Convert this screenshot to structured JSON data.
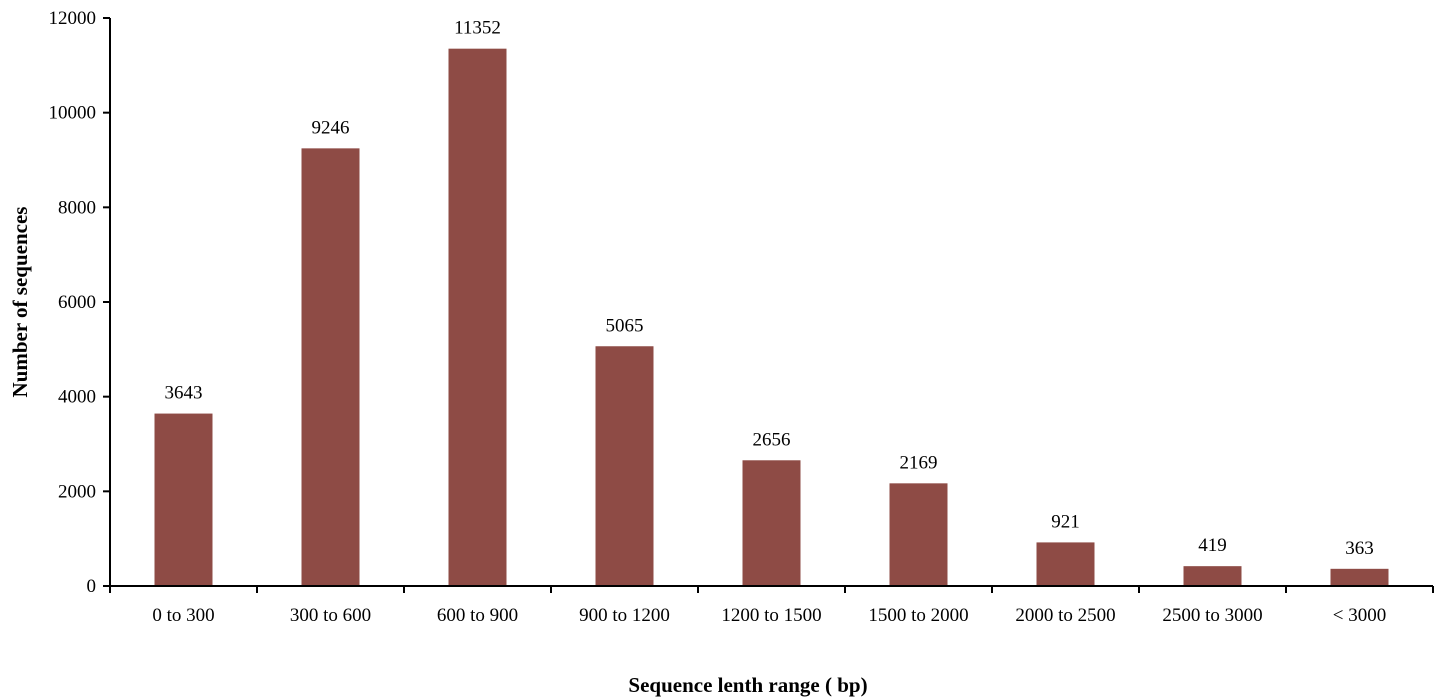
{
  "chart_data": {
    "type": "bar",
    "title": "",
    "xlabel": "Sequence lenth range ( bp)",
    "ylabel": "Number of sequences",
    "categories": [
      "0 to 300",
      "300 to 600",
      "600 to 900",
      "900 to 1200",
      "1200 to 1500",
      "1500 to 2000",
      "2000 to 2500",
      "2500 to 3000",
      "< 3000"
    ],
    "values": [
      3643,
      9246,
      11352,
      5065,
      2656,
      2169,
      921,
      419,
      363
    ],
    "data_labels": [
      "3643",
      "9246",
      "11352",
      "5065",
      "2656",
      "2169",
      "921",
      "419",
      "363"
    ],
    "ylim": [
      0,
      12000
    ],
    "yticks": [
      0,
      2000,
      4000,
      6000,
      8000,
      10000,
      12000
    ],
    "ytick_labels": [
      "0",
      "2000",
      "4000",
      "6000",
      "8000",
      "10000",
      "12000"
    ],
    "grid": false,
    "legend": "none",
    "colors": {
      "bar": "#8e4b45",
      "axis": "#000000"
    }
  }
}
